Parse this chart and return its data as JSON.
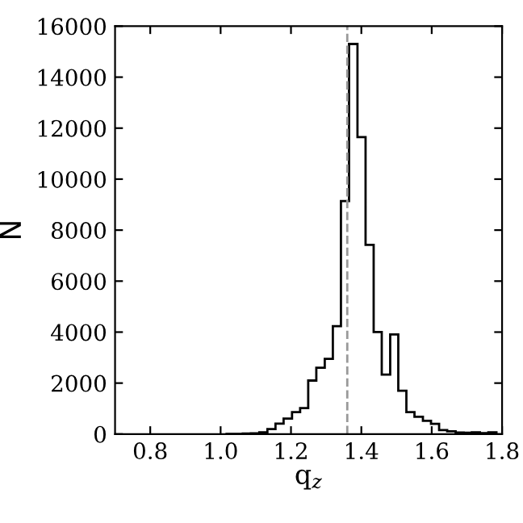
{
  "chart_data": {
    "type": "histogram",
    "xlabel": "q$_{z}$",
    "ylabel": "N",
    "color": "#000000",
    "bins": [
      1.017,
      1.04,
      1.063,
      1.086,
      1.11,
      1.133,
      1.156,
      1.179,
      1.203,
      1.226,
      1.249,
      1.272,
      1.296,
      1.319,
      1.342,
      1.365,
      1.389,
      1.412,
      1.435,
      1.458,
      1.482,
      1.505,
      1.528,
      1.551,
      1.575,
      1.598,
      1.621,
      1.644,
      1.668,
      1.691,
      1.714,
      1.737,
      1.761,
      1.784
    ],
    "values": [
      10,
      10,
      20,
      30,
      70,
      200,
      410,
      610,
      860,
      1020,
      2100,
      2600,
      2950,
      4230,
      9140,
      15300,
      11650,
      7420,
      4000,
      2330,
      3910,
      1700,
      860,
      680,
      520,
      400,
      160,
      110,
      60,
      50,
      70,
      40,
      70
    ],
    "xlim": [
      0.7,
      1.8
    ],
    "xticks": [
      0.8,
      {
        "value": 1,
        "label": "1.0"
      },
      1.2,
      1.4,
      1.6,
      1.8
    ],
    "ylim": [
      0,
      16000
    ],
    "yticks": [
      0,
      2000,
      4000,
      6000,
      8000,
      10000,
      12000,
      14000,
      16000
    ],
    "ref_lines": [
      {
        "axis": "x",
        "value": 1.36,
        "color": "#999999",
        "line_style": "dashed"
      }
    ],
    "grid": false
  }
}
